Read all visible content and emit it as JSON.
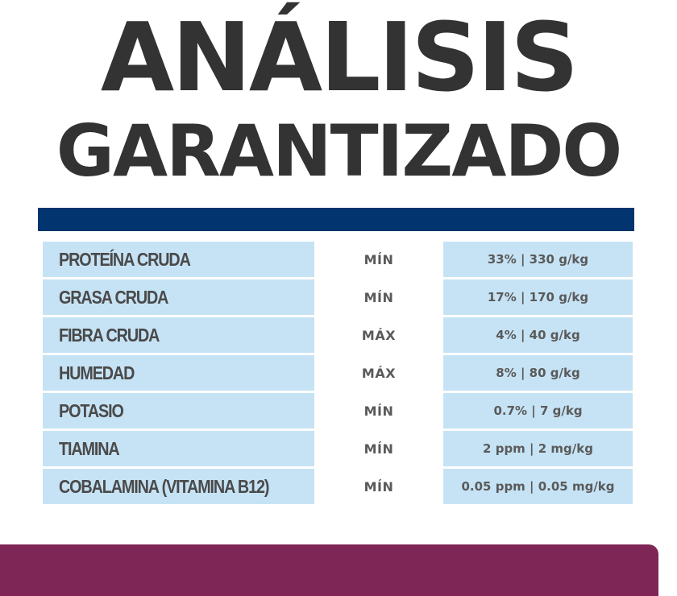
{
  "header": {
    "title_line1": "ANÁLISIS",
    "title_line2": "GARANTIZADO"
  },
  "colors": {
    "title": "#333333",
    "bar": "#023470",
    "row_bg": "#c6e3f5",
    "footer": "#7e2656"
  },
  "table": {
    "rows": [
      {
        "name": "PROTEÍNA CRUDA",
        "qualifier": "MÍN",
        "value": "33% | 330 g/kg"
      },
      {
        "name": "GRASA CRUDA",
        "qualifier": "MÍN",
        "value": "17% | 170 g/kg"
      },
      {
        "name": "FIBRA CRUDA",
        "qualifier": "MÁX",
        "value": "4% | 40 g/kg"
      },
      {
        "name": "HUMEDAD",
        "qualifier": "MÁX",
        "value": "8% | 80 g/kg"
      },
      {
        "name": "POTASIO",
        "qualifier": "MÍN",
        "value": "0.7% | 7 g/kg"
      },
      {
        "name": "TIAMINA",
        "qualifier": "MÍN",
        "value": "2 ppm | 2 mg/kg"
      },
      {
        "name": "COBALAMINA (VITAMINA B12)",
        "qualifier": "MÍN",
        "value": "0.05 ppm | 0.05 mg/kg"
      }
    ]
  }
}
